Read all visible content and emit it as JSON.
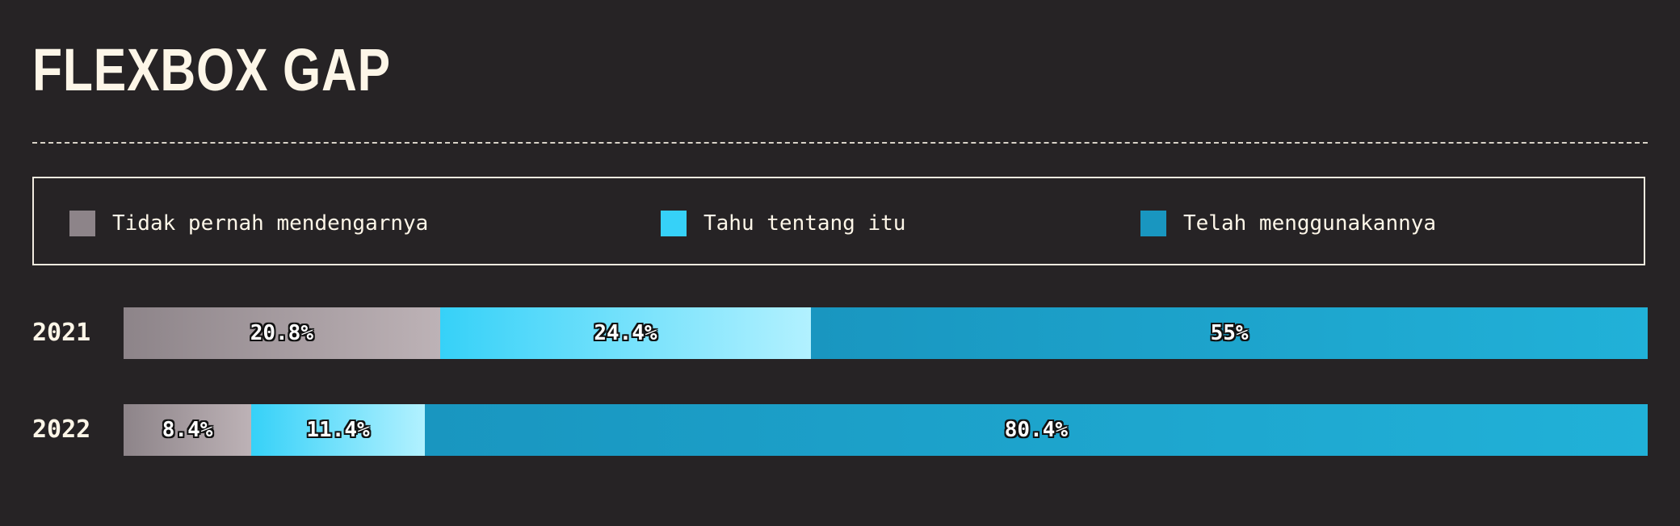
{
  "title": "FLEXBOX GAP",
  "legend": [
    {
      "label": "Tidak pernah mendengarnya",
      "color": "#8d8489",
      "icon": "legend-swatch"
    },
    {
      "label": "Tahu tentang itu",
      "color": "#36d1f8",
      "icon": "legend-swatch"
    },
    {
      "label": "Telah menggunakannya",
      "color": "#1996c0",
      "icon": "legend-swatch"
    }
  ],
  "rows": [
    {
      "label": "2021",
      "segments": [
        "20.8%",
        "24.4%",
        "55%"
      ]
    },
    {
      "label": "2022",
      "segments": [
        "8.4%",
        "11.4%",
        "80.4%"
      ]
    }
  ],
  "chart_data": {
    "type": "bar",
    "orientation": "horizontal",
    "stacked": true,
    "normalized": true,
    "title": "FLEXBOX GAP",
    "categories": [
      "2021",
      "2022"
    ],
    "series": [
      {
        "name": "Tidak pernah mendengarnya",
        "values": [
          20.8,
          8.4
        ],
        "color": "#8d8489",
        "gradient_end": "#bdb2b6"
      },
      {
        "name": "Tahu tentang itu",
        "values": [
          24.4,
          11.4
        ],
        "color": "#36d1f8",
        "gradient_end": "#b2f1ff"
      },
      {
        "name": "Telah menggunakannya",
        "values": [
          55,
          80.4
        ],
        "color": "#1996c0",
        "gradient_end": "#21b1d8"
      }
    ],
    "xlim": [
      0,
      100
    ],
    "grid": false,
    "legend_position": "top"
  }
}
